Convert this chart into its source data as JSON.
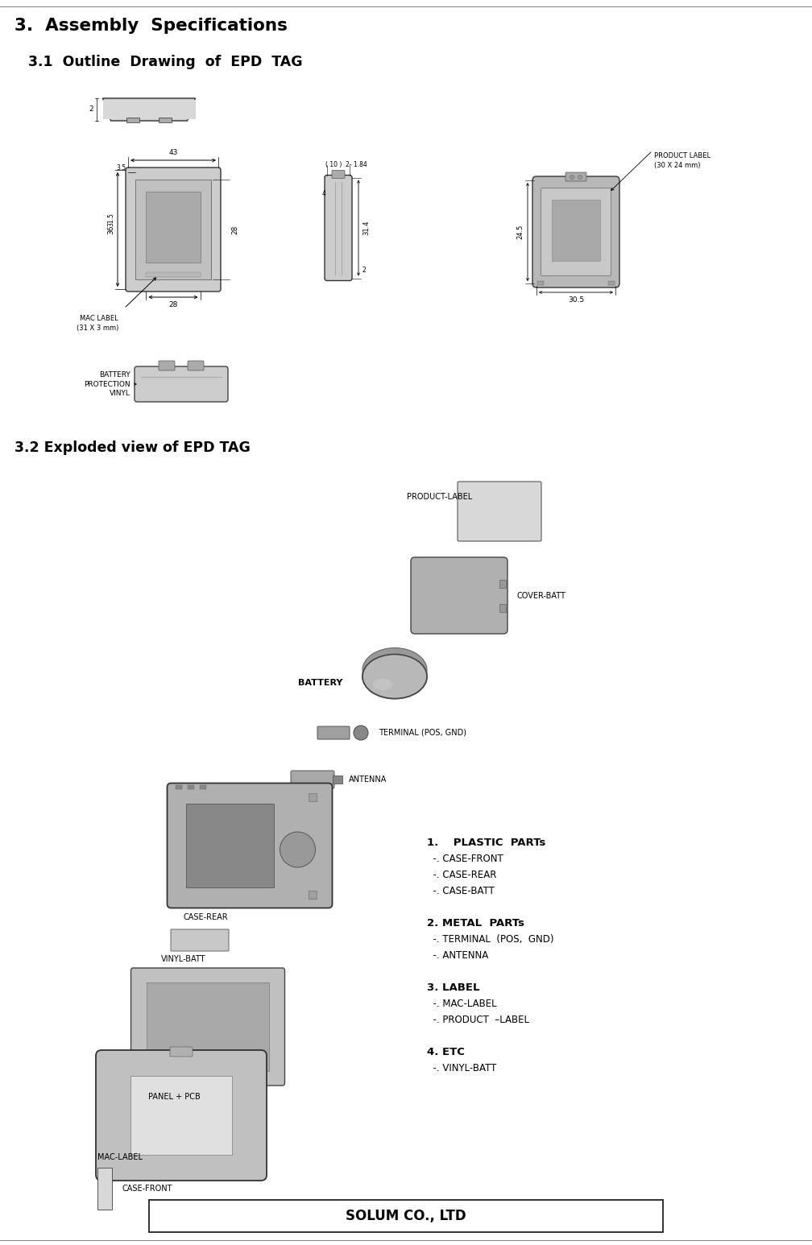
{
  "title": "3.  Assembly  Specifications",
  "section31": "3.1  Outline  Drawing  of  EPD  TAG",
  "section32": "3.2 Exploded view of EPD TAG",
  "footer_text": "SOLUM CO., LTD",
  "bg_color": "#ffffff",
  "text_color": "#000000",
  "line_color": "#333333",
  "gray_light": "#cccccc",
  "gray_mid": "#aaaaaa",
  "gray_dark": "#888888",
  "parts_list": [
    [
      "1.    PLASTIC  PARTs",
      true
    ],
    [
      "  -. CASE-FRONT",
      false
    ],
    [
      "  -. CASE-REAR",
      false
    ],
    [
      "  -. CASE-BATT",
      false
    ],
    [
      "",
      false
    ],
    [
      "2. METAL  PARTs",
      true
    ],
    [
      "  -. TERMINAL  (POS,  GND)",
      false
    ],
    [
      "  -. ANTENNA",
      false
    ],
    [
      "",
      false
    ],
    [
      "3. LABEL",
      true
    ],
    [
      "  -. MAC-LABEL",
      false
    ],
    [
      "  -. PRODUCT  –LABEL",
      false
    ],
    [
      "",
      false
    ],
    [
      "4. ETC",
      true
    ],
    [
      "  -. VINYL-BATT",
      false
    ]
  ],
  "fig_w": 10.08,
  "fig_h": 15.46,
  "dpi": 100
}
